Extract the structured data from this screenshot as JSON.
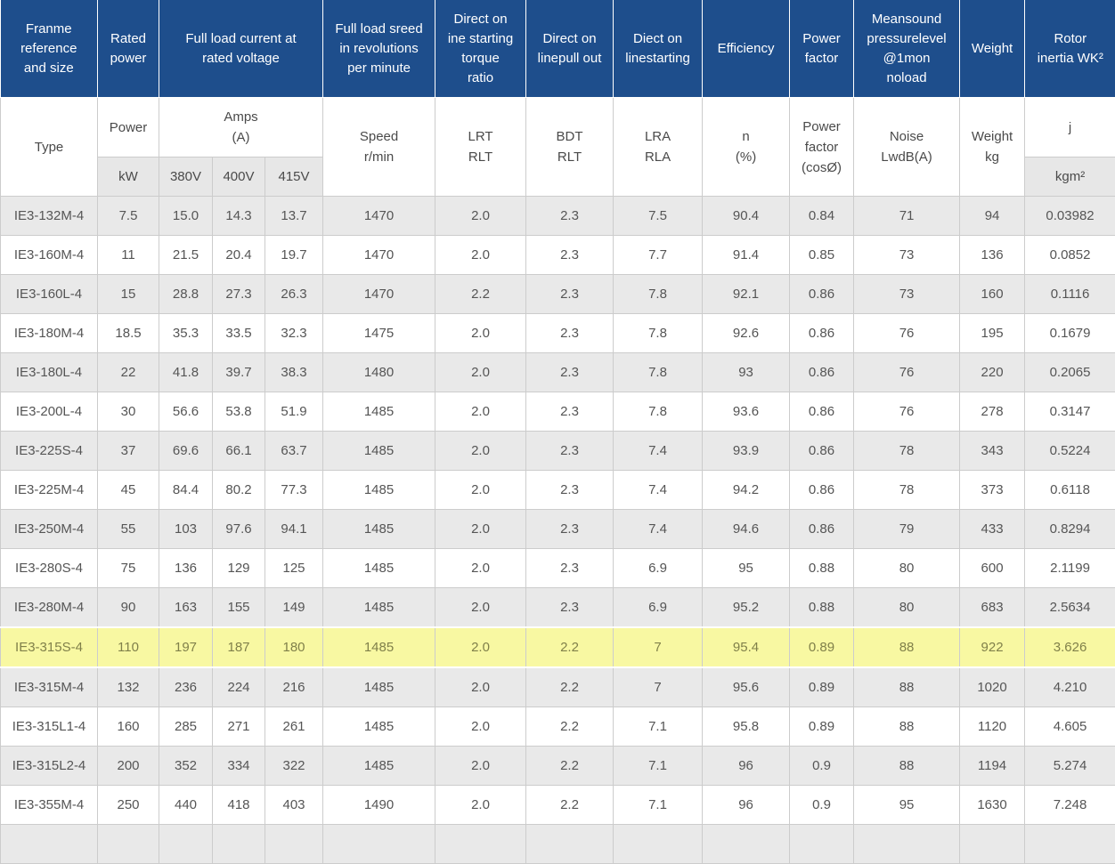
{
  "colors": {
    "header_bg": "#1e4e8c",
    "header_text": "#ffffff",
    "stripe_bg": "#e9e9e9",
    "units_bg": "#e7e7e7",
    "highlight_bg": "#f8f8a2",
    "highlight_text": "#80804a",
    "body_text": "#555555",
    "subheader_text": "#4a4a4a",
    "border": "#cccccc"
  },
  "table": {
    "header_groups": [
      {
        "label": "Franme\nreference\nand size"
      },
      {
        "label": "Rated\npower"
      },
      {
        "label": "Full load current at\nrated voltage"
      },
      {
        "label": "Full load sreed\nin revolutions\nper minute"
      },
      {
        "label": "Direct on\nine starting\ntorque\nratio"
      },
      {
        "label": "Direct on\nlinepull out"
      },
      {
        "label": "Diect on\nlinestarting"
      },
      {
        "label": "Efficiency"
      },
      {
        "label": "Power\nfactor"
      },
      {
        "label": "Meansound\npressurelevel\n@1mon\nnoload"
      },
      {
        "label": "Weight"
      },
      {
        "label": "Rotor\ninertia WK²"
      }
    ],
    "sub_headers": {
      "type": "Type",
      "power": "Power",
      "amps": "Amps\n(A)",
      "speed": "Speed\nr/min",
      "lrt": "LRT\nRLT",
      "bdt": "BDT\nRLT",
      "lra": "LRA\nRLA",
      "efficiency": "n\n(%)",
      "power_factor": "Power\nfactor\n(cosØ)",
      "noise": "Noise\nLwdB(A)",
      "weight": "Weight\nkg",
      "inertia": "j"
    },
    "units": {
      "power": "kW",
      "v380": "380V",
      "v400": "400V",
      "v415": "415V",
      "inertia": "kgm²"
    },
    "rows": [
      {
        "cells": [
          "IE3-132M-4",
          "7.5",
          "15.0",
          "14.3",
          "13.7",
          "1470",
          "2.0",
          "2.3",
          "7.5",
          "90.4",
          "0.84",
          "71",
          "94",
          "0.03982"
        ]
      },
      {
        "cells": [
          "IE3-160M-4",
          "11",
          "21.5",
          "20.4",
          "19.7",
          "1470",
          "2.0",
          "2.3",
          "7.7",
          "91.4",
          "0.85",
          "73",
          "136",
          "0.0852"
        ]
      },
      {
        "cells": [
          "IE3-160L-4",
          "15",
          "28.8",
          "27.3",
          "26.3",
          "1470",
          "2.2",
          "2.3",
          "7.8",
          "92.1",
          "0.86",
          "73",
          "160",
          "0.1116"
        ]
      },
      {
        "cells": [
          "IE3-180M-4",
          "18.5",
          "35.3",
          "33.5",
          "32.3",
          "1475",
          "2.0",
          "2.3",
          "7.8",
          "92.6",
          "0.86",
          "76",
          "195",
          "0.1679"
        ]
      },
      {
        "cells": [
          "IE3-180L-4",
          "22",
          "41.8",
          "39.7",
          "38.3",
          "1480",
          "2.0",
          "2.3",
          "7.8",
          "93",
          "0.86",
          "76",
          "220",
          "0.2065"
        ]
      },
      {
        "cells": [
          "IE3-200L-4",
          "30",
          "56.6",
          "53.8",
          "51.9",
          "1485",
          "2.0",
          "2.3",
          "7.8",
          "93.6",
          "0.86",
          "76",
          "278",
          "0.3147"
        ]
      },
      {
        "cells": [
          "IE3-225S-4",
          "37",
          "69.6",
          "66.1",
          "63.7",
          "1485",
          "2.0",
          "2.3",
          "7.4",
          "93.9",
          "0.86",
          "78",
          "343",
          "0.5224"
        ]
      },
      {
        "cells": [
          "IE3-225M-4",
          "45",
          "84.4",
          "80.2",
          "77.3",
          "1485",
          "2.0",
          "2.3",
          "7.4",
          "94.2",
          "0.86",
          "78",
          "373",
          "0.6118"
        ]
      },
      {
        "cells": [
          "IE3-250M-4",
          "55",
          "103",
          "97.6",
          "94.1",
          "1485",
          "2.0",
          "2.3",
          "7.4",
          "94.6",
          "0.86",
          "79",
          "433",
          "0.8294"
        ]
      },
      {
        "cells": [
          "IE3-280S-4",
          "75",
          "136",
          "129",
          "125",
          "1485",
          "2.0",
          "2.3",
          "6.9",
          "95",
          "0.88",
          "80",
          "600",
          "2.1199"
        ]
      },
      {
        "cells": [
          "IE3-280M-4",
          "90",
          "163",
          "155",
          "149",
          "1485",
          "2.0",
          "2.3",
          "6.9",
          "95.2",
          "0.88",
          "80",
          "683",
          "2.5634"
        ]
      },
      {
        "cells": [
          "IE3-315S-4",
          "110",
          "197",
          "187",
          "180",
          "1485",
          "2.0",
          "2.2",
          "7",
          "95.4",
          "0.89",
          "88",
          "922",
          "3.626"
        ],
        "highlight": true
      },
      {
        "cells": [
          "IE3-315M-4",
          "132",
          "236",
          "224",
          "216",
          "1485",
          "2.0",
          "2.2",
          "7",
          "95.6",
          "0.89",
          "88",
          "1020",
          "4.210"
        ]
      },
      {
        "cells": [
          "IE3-315L1-4",
          "160",
          "285",
          "271",
          "261",
          "1485",
          "2.0",
          "2.2",
          "7.1",
          "95.8",
          "0.89",
          "88",
          "1120",
          "4.605"
        ]
      },
      {
        "cells": [
          "IE3-315L2-4",
          "200",
          "352",
          "334",
          "322",
          "1485",
          "2.0",
          "2.2",
          "7.1",
          "96",
          "0.9",
          "88",
          "1194",
          "5.274"
        ]
      },
      {
        "cells": [
          "IE3-355M-4",
          "250",
          "440",
          "418",
          "403",
          "1490",
          "2.0",
          "2.2",
          "7.1",
          "96",
          "0.9",
          "95",
          "1630",
          "7.248"
        ]
      }
    ]
  }
}
